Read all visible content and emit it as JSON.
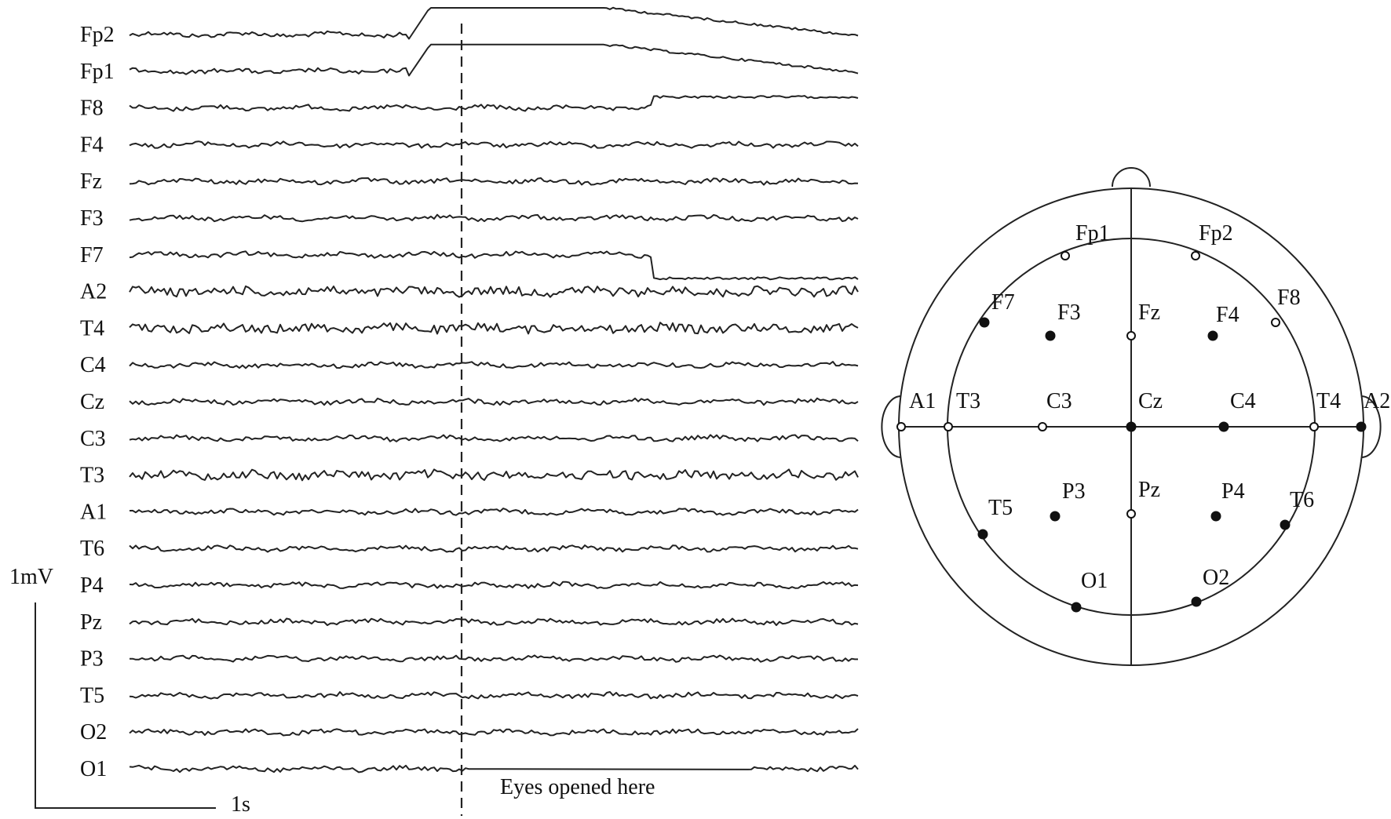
{
  "eeg": {
    "channels": [
      "Fp2",
      "Fp1",
      "F8",
      "F4",
      "Fz",
      "F3",
      "F7",
      "A2",
      "T4",
      "C4",
      "Cz",
      "C3",
      "T3",
      "A1",
      "T6",
      "P4",
      "Pz",
      "P3",
      "T5",
      "O2",
      "O1"
    ],
    "scale_amplitude_label": "1mV",
    "scale_time_label": "1s",
    "event_label": "Eyes opened here"
  },
  "montage": {
    "electrodes": [
      {
        "name": "Fp1",
        "fill": "open"
      },
      {
        "name": "Fp2",
        "fill": "open"
      },
      {
        "name": "F7",
        "fill": "filled"
      },
      {
        "name": "F3",
        "fill": "filled"
      },
      {
        "name": "Fz",
        "fill": "open"
      },
      {
        "name": "F4",
        "fill": "filled"
      },
      {
        "name": "F8",
        "fill": "open"
      },
      {
        "name": "A1",
        "fill": "open"
      },
      {
        "name": "T3",
        "fill": "open"
      },
      {
        "name": "C3",
        "fill": "open"
      },
      {
        "name": "Cz",
        "fill": "filled"
      },
      {
        "name": "C4",
        "fill": "filled"
      },
      {
        "name": "T4",
        "fill": "open"
      },
      {
        "name": "A2",
        "fill": "filled"
      },
      {
        "name": "T5",
        "fill": "filled"
      },
      {
        "name": "P3",
        "fill": "filled"
      },
      {
        "name": "Pz",
        "fill": "open"
      },
      {
        "name": "P4",
        "fill": "filled"
      },
      {
        "name": "T6",
        "fill": "filled"
      },
      {
        "name": "O1",
        "fill": "filled"
      },
      {
        "name": "O2",
        "fill": "filled"
      }
    ]
  }
}
